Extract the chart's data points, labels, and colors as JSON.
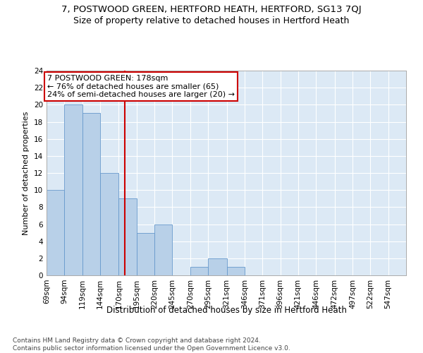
{
  "title": "7, POSTWOOD GREEN, HERTFORD HEATH, HERTFORD, SG13 7QJ",
  "subtitle": "Size of property relative to detached houses in Hertford Heath",
  "xlabel": "Distribution of detached houses by size in Hertford Heath",
  "ylabel": "Number of detached properties",
  "bar_edges": [
    69,
    94,
    119,
    144,
    170,
    195,
    220,
    245,
    270,
    295,
    321,
    346,
    371,
    396,
    421,
    446,
    472,
    497,
    522,
    547,
    572
  ],
  "bar_heights": [
    10,
    20,
    19,
    12,
    9,
    5,
    6,
    0,
    1,
    2,
    1,
    0,
    0,
    0,
    0,
    0,
    0,
    0,
    0,
    0
  ],
  "bar_color": "#b8d0e8",
  "bar_edge_color": "#6699cc",
  "property_size": 178,
  "property_line_color": "#cc0000",
  "annotation_text": "7 POSTWOOD GREEN: 178sqm\n← 76% of detached houses are smaller (65)\n24% of semi-detached houses are larger (20) →",
  "annotation_box_facecolor": "#ffffff",
  "annotation_box_edgecolor": "#cc0000",
  "ylim": [
    0,
    24
  ],
  "yticks": [
    0,
    2,
    4,
    6,
    8,
    10,
    12,
    14,
    16,
    18,
    20,
    22,
    24
  ],
  "background_color": "#dce9f5",
  "footer_text": "Contains HM Land Registry data © Crown copyright and database right 2024.\nContains public sector information licensed under the Open Government Licence v3.0.",
  "title_fontsize": 9.5,
  "subtitle_fontsize": 9,
  "xlabel_fontsize": 8.5,
  "ylabel_fontsize": 8,
  "tick_fontsize": 7.5,
  "annotation_fontsize": 8,
  "footer_fontsize": 6.5,
  "grid_color": "#ffffff",
  "spine_color": "#aaaaaa"
}
